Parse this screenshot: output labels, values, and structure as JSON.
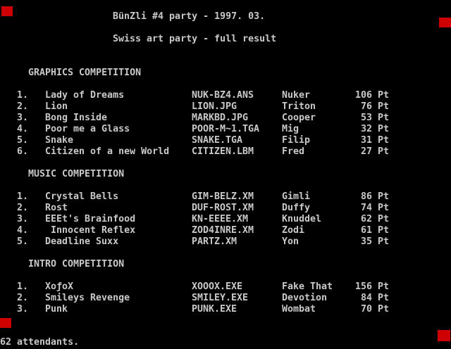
{
  "screen": {
    "title": "BünZli #4 party - 1997. 03.",
    "subtitle": "Swiss art party - full result",
    "footer": "62 attendants.",
    "colors": {
      "background": "#000000",
      "text": "#c9c9c9",
      "marker_red": "#cf0000"
    }
  },
  "sections": [
    {
      "heading": "GRAPHICS COMPETITION",
      "rows": [
        {
          "rank": "1.",
          "title": "Lady of Dreams",
          "file": "NUK-BZ4.ANS",
          "author": "Nuker",
          "points": "106 Pt"
        },
        {
          "rank": "2.",
          "title": "Lion",
          "file": "LION.JPG",
          "author": "Triton",
          "points": "76 Pt"
        },
        {
          "rank": "3.",
          "title": "Bong Inside",
          "file": "MARKBD.JPG",
          "author": "Cooper",
          "points": "53 Pt"
        },
        {
          "rank": "4.",
          "title": "Poor me a Glass",
          "file": "POOR-M~1.TGA",
          "author": "Mig",
          "points": "32 Pt"
        },
        {
          "rank": "5.",
          "title": "Snake",
          "file": "SNAKE.TGA",
          "author": "Filip",
          "points": "31 Pt"
        },
        {
          "rank": "6.",
          "title": "Citizen of a new World",
          "file": "CITIZEN.LBM",
          "author": "Fred",
          "points": "27 Pt"
        }
      ]
    },
    {
      "heading": "MUSIC COMPETITION",
      "rows": [
        {
          "rank": "1.",
          "title": "Crystal Bells",
          "file": "GIM-BELZ.XM",
          "author": "Gimli",
          "points": "86 Pt"
        },
        {
          "rank": "2.",
          "title": "Rost",
          "file": "DUF-ROST.XM",
          "author": "Duffy",
          "points": "74 Pt"
        },
        {
          "rank": "3.",
          "title": "EEEt's Brainfood",
          "file": "KN-EEEE.XM",
          "author": "Knuddel",
          "points": "62 Pt"
        },
        {
          "rank": "4.",
          "title": " Innocent Reflex",
          "file": "ZOD4INRE.XM",
          "author": "Zodi",
          "points": "61 Pt"
        },
        {
          "rank": "5.",
          "title": "Deadline Suxx",
          "file": "PARTZ.XM",
          "author": "Yon",
          "points": "35 Pt"
        }
      ]
    },
    {
      "heading": "INTRO COMPETITION",
      "rows": [
        {
          "rank": "1.",
          "title": "XoƒoX",
          "file": "XOOOX.EXE",
          "author": "Fake That",
          "points": "156 Pt"
        },
        {
          "rank": "2.",
          "title": "Smileys Revenge",
          "file": "SMILEY.EXE",
          "author": "Devotion",
          "points": "84 Pt"
        },
        {
          "rank": "3.",
          "title": "Punk",
          "file": "PUNK.EXE",
          "author": "Wombat",
          "points": "70 Pt"
        }
      ]
    }
  ]
}
